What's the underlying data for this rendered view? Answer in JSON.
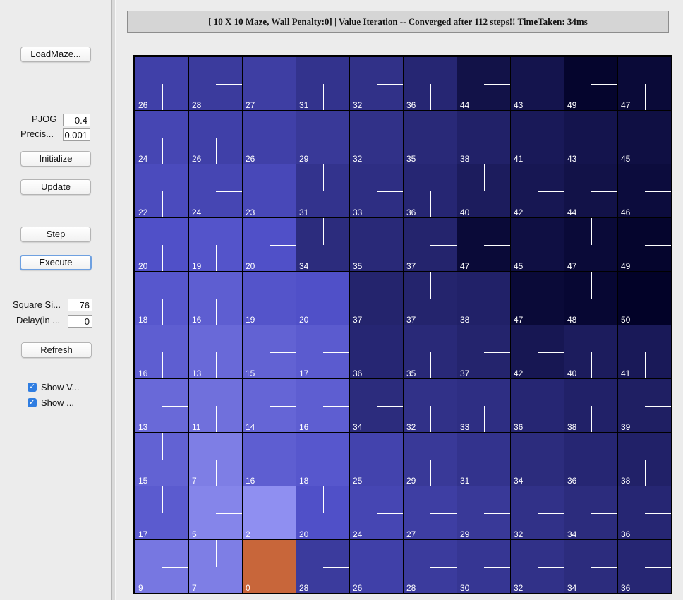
{
  "title_bar": "[ 10 X 10 Maze, Wall Penalty:0] |  Value Iteration -- Converged after 112 steps!! TimeTaken: 34ms",
  "controls": {
    "load_maze": "LoadMaze...",
    "pjog_label": "PJOG",
    "pjog_value": "0.4",
    "precision_label": "Precis...",
    "precision_value": "0.001",
    "initialize": "Initialize",
    "update": "Update",
    "step": "Step",
    "execute": "Execute",
    "square_size_label": "Square Si...",
    "square_size_value": "76",
    "delay_label": "Delay(in ...",
    "delay_value": "0",
    "refresh": "Refresh",
    "show_values_label": "Show V...",
    "show_policy_label": "Show ..."
  },
  "maze": {
    "rows": 10,
    "cols": 10,
    "goal_color": "#c8663a",
    "values": [
      [
        26,
        28,
        27,
        31,
        32,
        36,
        44,
        43,
        49,
        47
      ],
      [
        24,
        26,
        26,
        29,
        32,
        35,
        38,
        41,
        43,
        45
      ],
      [
        22,
        24,
        23,
        31,
        33,
        36,
        40,
        42,
        44,
        46
      ],
      [
        20,
        19,
        20,
        34,
        35,
        37,
        47,
        45,
        47,
        49
      ],
      [
        18,
        16,
        19,
        20,
        37,
        37,
        38,
        47,
        48,
        50
      ],
      [
        16,
        13,
        15,
        17,
        36,
        35,
        37,
        42,
        40,
        41
      ],
      [
        13,
        11,
        14,
        16,
        34,
        32,
        33,
        36,
        38,
        39
      ],
      [
        15,
        7,
        16,
        18,
        25,
        29,
        31,
        34,
        36,
        38
      ],
      [
        17,
        5,
        2,
        20,
        24,
        27,
        29,
        32,
        34,
        36
      ],
      [
        9,
        7,
        0,
        28,
        26,
        28,
        30,
        32,
        34,
        36
      ]
    ],
    "policy": [
      [
        "S",
        "E",
        "S",
        "S",
        "E",
        "S",
        "E",
        "S",
        "E",
        "S"
      ],
      [
        "S",
        "S",
        "S",
        "E",
        "E",
        "E",
        "E",
        "E",
        "E",
        "E"
      ],
      [
        "S",
        "E",
        "S",
        "N",
        "E",
        "S",
        "N",
        "E",
        "E",
        "E"
      ],
      [
        "S",
        "S",
        "E",
        "N",
        "N",
        "E",
        "E",
        "N",
        "N",
        "E"
      ],
      [
        "S",
        "S",
        "E",
        "E",
        "N",
        "N",
        "E",
        "N",
        "N",
        "E"
      ],
      [
        "S",
        "S",
        "E",
        "E",
        "S",
        "S",
        "E",
        "E",
        "S",
        "S"
      ],
      [
        "E",
        "S",
        "E",
        "E",
        "E",
        "S",
        "S",
        "S",
        "S",
        "E"
      ],
      [
        "N",
        "S",
        "N",
        "E",
        "S",
        "S",
        "E",
        "E",
        "E",
        "S"
      ],
      [
        "N",
        "E",
        "S",
        "N",
        "E",
        "E",
        "E",
        "E",
        "E",
        "E"
      ],
      [
        "E",
        "N",
        "G",
        "E",
        "N",
        "E",
        "E",
        "E",
        "E",
        "E"
      ]
    ]
  }
}
